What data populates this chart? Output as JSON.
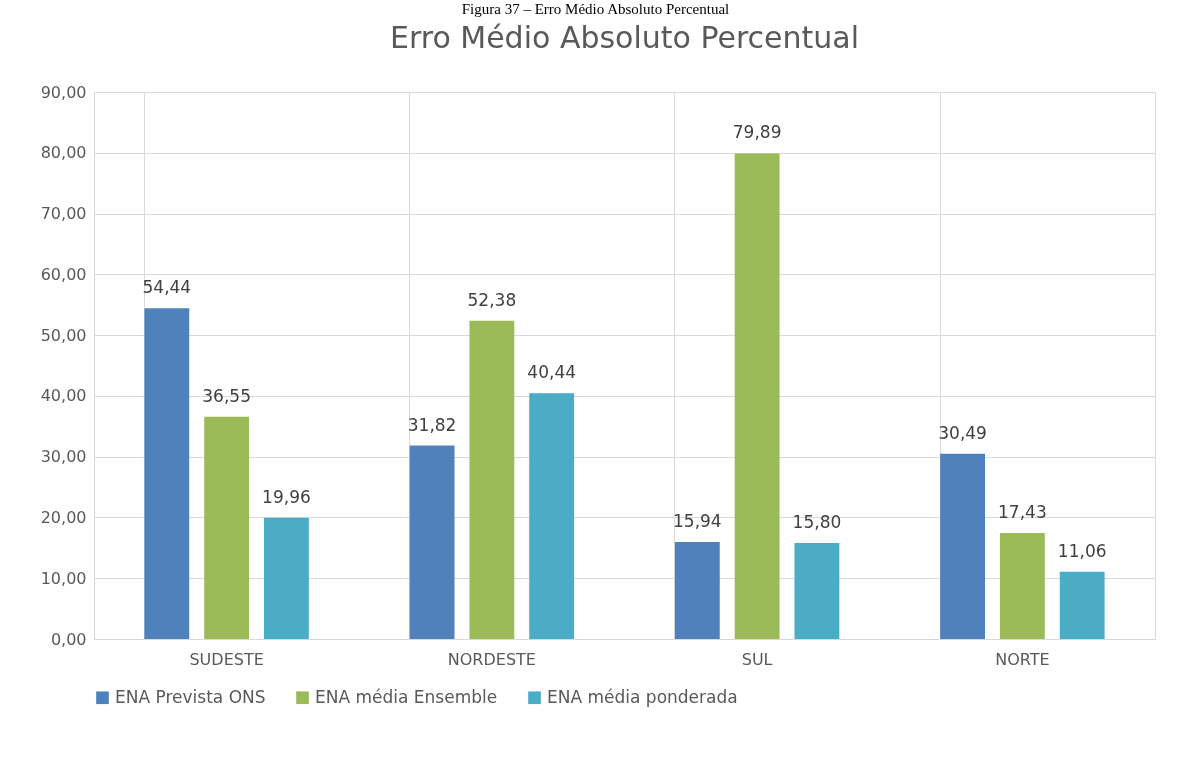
{
  "chart_data": {
    "type": "bar",
    "title": "Erro Médio Absoluto Percentual",
    "annotations": [
      "Figura 37 – Erro Médio Absoluto Percentual"
    ],
    "categories": [
      "SUDESTE",
      "NORDESTE",
      "SUL",
      "NORTE"
    ],
    "series": [
      {
        "name": "ENA Prevista ONS",
        "color": "#4f81bd",
        "values": [
          54.44,
          31.82,
          15.94,
          30.49
        ],
        "value_labels": [
          "54,44",
          "31,82",
          "15,94",
          "30,49"
        ]
      },
      {
        "name": "ENA média Ensemble",
        "color": "#9bbb59",
        "values": [
          36.55,
          52.38,
          79.89,
          17.43
        ],
        "value_labels": [
          "36,55",
          "52,38",
          "79,89",
          "17,43"
        ]
      },
      {
        "name": "ENA média ponderada",
        "color": "#4bacc6",
        "values": [
          19.96,
          40.44,
          15.8,
          11.06
        ],
        "value_labels": [
          "19,96",
          "40,44",
          "15,80",
          "11,06"
        ]
      }
    ],
    "ylim": [
      0,
      90
    ],
    "yticks": [
      {
        "value": 0,
        "label": "0,00"
      },
      {
        "value": 10,
        "label": "10,00"
      },
      {
        "value": 20,
        "label": "20,00"
      },
      {
        "value": 30,
        "label": "30,00"
      },
      {
        "value": 40,
        "label": "40,00"
      },
      {
        "value": 50,
        "label": "50,00"
      },
      {
        "value": 60,
        "label": "60,00"
      },
      {
        "value": 70,
        "label": "70,00"
      },
      {
        "value": 80,
        "label": "80,00"
      },
      {
        "value": 90,
        "label": "90,00"
      }
    ],
    "grid": true,
    "legend": "bottom"
  }
}
